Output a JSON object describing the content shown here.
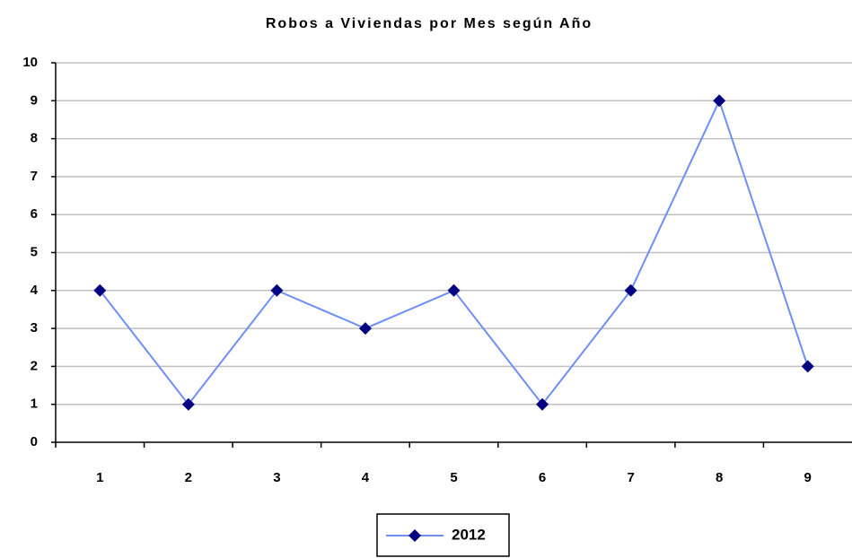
{
  "chart_data": {
    "type": "line",
    "title": "Robos a Viviendas por Mes según Año",
    "categories": [
      "1",
      "2",
      "3",
      "4",
      "5",
      "6",
      "7",
      "8",
      "9"
    ],
    "series": [
      {
        "name": "2012",
        "color": "#6f8ff5",
        "marker_color": "#000080",
        "values": [
          4,
          1,
          4,
          3,
          4,
          1,
          4,
          9,
          2
        ]
      }
    ],
    "ylim": [
      0,
      10
    ],
    "yticks": [
      0,
      1,
      2,
      3,
      4,
      5,
      6,
      7,
      8,
      9,
      10
    ],
    "grid": true,
    "legend": "bottom"
  }
}
